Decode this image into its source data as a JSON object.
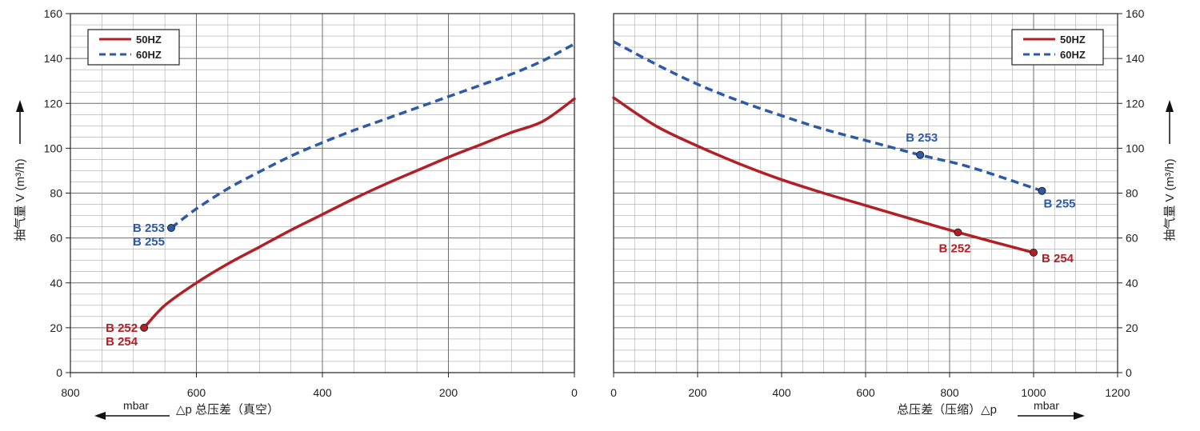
{
  "chart_data": [
    {
      "type": "line",
      "title": "",
      "xlabel": "△p 总压差（真空）",
      "xunit": "mbar",
      "ylabel": "抽气量 V (m³/h)",
      "xlim": [
        800,
        0
      ],
      "ylim": [
        0,
        160
      ],
      "x_ticks": [
        "800",
        "600",
        "400",
        "200",
        "0"
      ],
      "y_ticks": [
        "0",
        "20",
        "40",
        "60",
        "80",
        "100",
        "120",
        "140",
        "160"
      ],
      "grid": true,
      "legend_position": "top-left",
      "series": [
        {
          "name": "50HZ",
          "color": "#b22025",
          "style": "solid",
          "x": [
            683,
            650,
            600,
            550,
            500,
            450,
            400,
            350,
            300,
            250,
            200,
            150,
            100,
            50,
            0
          ],
          "y": [
            20,
            30,
            40,
            48.5,
            56,
            63.5,
            70.5,
            77.5,
            84,
            90,
            96,
            101.5,
            107,
            112,
            122
          ],
          "end_marker": {
            "x": 683,
            "y": 20,
            "labels": [
              "B 252",
              "B 254"
            ]
          }
        },
        {
          "name": "60HZ",
          "color": "#2c5aa8",
          "style": "dashed",
          "x": [
            640,
            600,
            550,
            500,
            450,
            400,
            350,
            300,
            250,
            200,
            150,
            100,
            50,
            0
          ],
          "y": [
            64.5,
            73,
            82,
            89.5,
            96.5,
            102.5,
            108,
            113,
            118,
            123,
            128,
            133,
            139,
            146.5
          ],
          "end_marker": {
            "x": 640,
            "y": 64.5,
            "labels": [
              "B 253",
              "B 255"
            ]
          }
        }
      ]
    },
    {
      "type": "line",
      "title": "",
      "xlabel": "总压差（压缩）△p",
      "xunit": "mbar",
      "ylabel": "抽气量 V (m³/h)",
      "xlim": [
        0,
        1200
      ],
      "ylim": [
        0,
        160
      ],
      "x_ticks": [
        "0",
        "200",
        "400",
        "600",
        "800",
        "1000",
        "1200"
      ],
      "y_ticks": [
        "0",
        "20",
        "40",
        "60",
        "80",
        "100",
        "120",
        "140",
        "160"
      ],
      "grid": true,
      "legend_position": "top-right",
      "series": [
        {
          "name": "50HZ",
          "color": "#b22025",
          "style": "solid",
          "x": [
            0,
            100,
            200,
            300,
            400,
            500,
            600,
            700,
            820,
            1000
          ],
          "y": [
            122.5,
            110,
            101,
            93,
            86,
            80,
            74.5,
            69,
            62.5,
            53.5
          ],
          "markers": [
            {
              "x": 820,
              "y": 62.5,
              "labels": [
                "B 252"
              ]
            },
            {
              "x": 1000,
              "y": 53.5,
              "labels": [
                "B 254"
              ]
            }
          ]
        },
        {
          "name": "60HZ",
          "color": "#2c5aa8",
          "style": "dashed",
          "x": [
            0,
            100,
            200,
            300,
            400,
            500,
            600,
            730,
            850,
            1020
          ],
          "y": [
            147.5,
            137.5,
            128.5,
            121,
            114.5,
            108.5,
            103.5,
            97,
            91.5,
            81
          ],
          "markers": [
            {
              "x": 730,
              "y": 97,
              "labels": [
                "B 253"
              ]
            },
            {
              "x": 1020,
              "y": 81,
              "labels": [
                "B 255"
              ]
            }
          ]
        }
      ]
    }
  ]
}
